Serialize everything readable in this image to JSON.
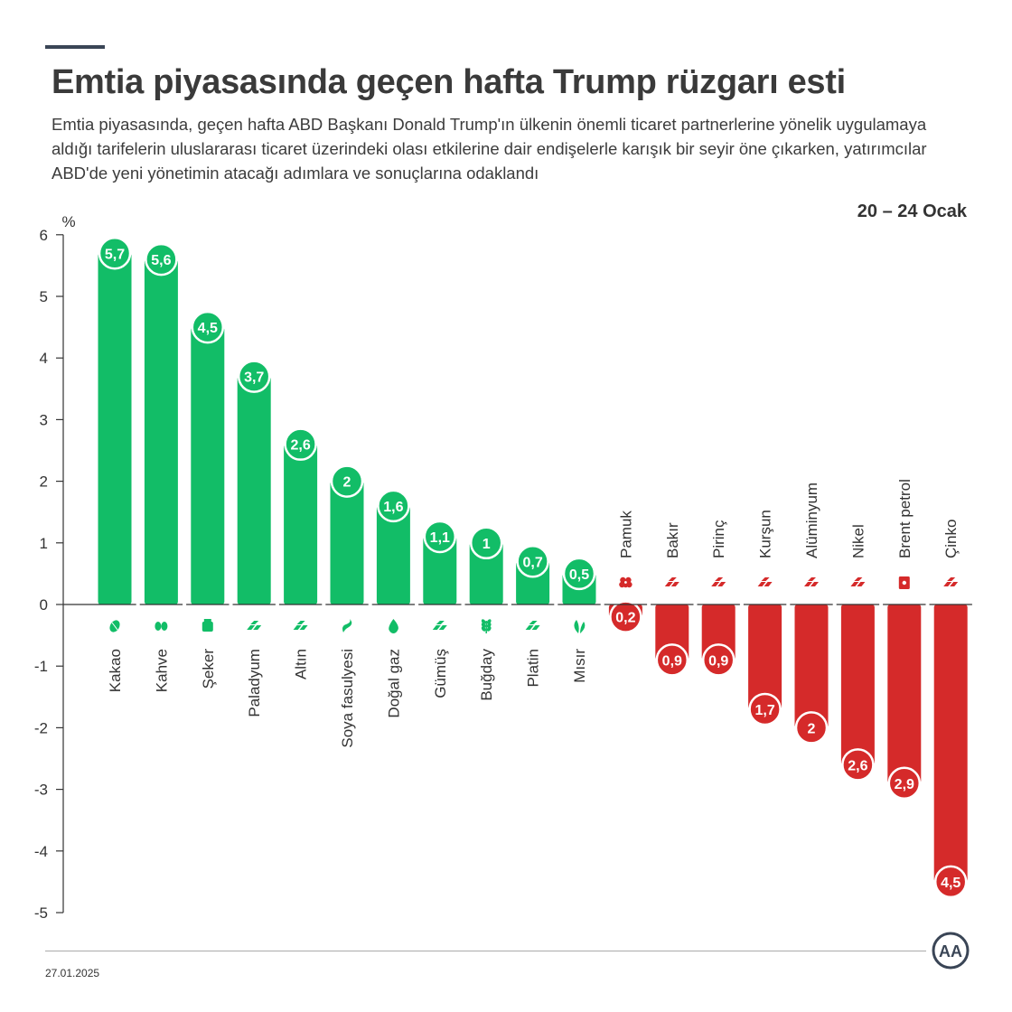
{
  "title": "Emtia piyasasında geçen hafta Trump rüzgarı esti",
  "subtitle": "Emtia piyasasında, geçen hafta ABD Başkanı Donald Trump'ın ülkenin önemli ticaret partnerlerine yönelik uygulamaya aldığı tarifelerin uluslararası ticaret üzerindeki olası etkilerine dair endişelerle karışık bir seyir öne çıkarken, yatırımcılar ABD'de yeni yönetimin atacağı adımlara ve sonuçlarına odaklandı",
  "date_range": "20 – 24 Ocak",
  "footer_date": "27.01.2025",
  "logo_text": "AA",
  "colors": {
    "positive": "#12bd67",
    "negative": "#d52a2a",
    "text": "#333333"
  },
  "chart_data": {
    "type": "bar",
    "ylabel": "%",
    "ylim": [
      -5,
      6
    ],
    "yticks": [
      "6",
      "5",
      "4",
      "3",
      "2",
      "1",
      "0",
      "-1",
      "-2",
      "-3",
      "-4",
      "-5"
    ],
    "categories": [
      "Kakao",
      "Kahve",
      "Şeker",
      "Paladyum",
      "Altın",
      "Soya fasulyesi",
      "Doğal gaz",
      "Gümüş",
      "Buğday",
      "Platin",
      "Mısır",
      "Pamuk",
      "Bakır",
      "Pirinç",
      "Kurşun",
      "Alüminyum",
      "Nikel",
      "Brent petrol",
      "Çinko"
    ],
    "values": [
      5.7,
      5.6,
      4.5,
      3.7,
      2.6,
      2,
      1.6,
      1.1,
      1,
      0.7,
      0.5,
      -0.2,
      -0.9,
      -0.9,
      -1.7,
      -2,
      -2.6,
      -2.9,
      -4.5
    ],
    "value_labels": [
      "5,7",
      "5,6",
      "4,5",
      "3,7",
      "2,6",
      "2",
      "1,6",
      "1,1",
      "1",
      "0,7",
      "0,5",
      "0,2",
      "0,9",
      "0,9",
      "1,7",
      "2",
      "2,6",
      "2,9",
      "4,5"
    ],
    "icons": [
      "cocoa-icon",
      "coffee-icon",
      "sugar-icon",
      "metal-bars-icon",
      "metal-bars-icon",
      "soybean-icon",
      "gas-flame-icon",
      "metal-bars-icon",
      "wheat-icon",
      "metal-bars-icon",
      "corn-leaf-icon",
      "cotton-icon",
      "metal-bars-icon",
      "metal-bars-icon",
      "metal-bars-icon",
      "metal-bars-icon",
      "metal-bars-icon",
      "oil-barrel-icon",
      "metal-bars-icon"
    ]
  }
}
